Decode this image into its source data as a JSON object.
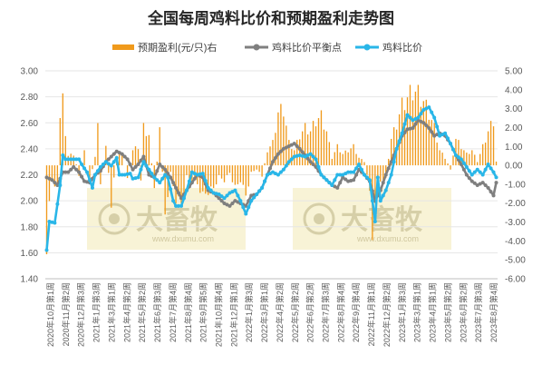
{
  "chart_data": {
    "type": "bar+line",
    "title": "全国每周鸡料比价和预期盈利走势图",
    "legend": [
      {
        "label": "预期盈利(元/只)右",
        "color": "#f09a1c",
        "kind": "bar"
      },
      {
        "label": "鸡料比价平衡点",
        "color": "#7f7f7f",
        "kind": "line"
      },
      {
        "label": "鸡料比价",
        "color": "#29b6e8",
        "kind": "line"
      }
    ],
    "left_axis": {
      "min": 1.4,
      "max": 3.0,
      "step": 0.2,
      "ticks": [
        "1.40",
        "1.60",
        "1.80",
        "2.00",
        "2.20",
        "2.40",
        "2.60",
        "2.80",
        "3.00"
      ]
    },
    "right_axis": {
      "min": -6,
      "max": 5,
      "step": 1,
      "ticks": [
        "-6.00",
        "-5.00",
        "-4.00",
        "-3.00",
        "-2.00",
        "-1.00",
        "0.00",
        "1.00",
        "2.00",
        "3.00",
        "4.00",
        "5.00"
      ]
    },
    "x_tick_labels": [
      "2020年10月第1周",
      "2020年11月第2周",
      "2020年12月第3周",
      "2021年1月第3周",
      "2021年3月第1周",
      "2021年4月第2周",
      "2021年5月第2周",
      "2021年6月第3周",
      "2021年7月第4周",
      "2021年8月第4周",
      "2021年9月第5周",
      "2021年10月第4周",
      "2021年12月第1周",
      "2022年1月第3周",
      "2022年3月第1周",
      "2022年4月第2周",
      "2022年5月第2周",
      "2022年6月第2周",
      "2022年7月第3周",
      "2022年8月第4周",
      "2022年9月第4周",
      "2022年11月第1周",
      "2022年12月第2周",
      "2023年1月第3周",
      "2023年3月第1周",
      "2023年4月第1周",
      "2023年5月第2周",
      "2023年6月第2周",
      "2023年7月第3周",
      "2023年8月第4周"
    ],
    "keypoints_ratio": [
      [
        0,
        1.62
      ],
      [
        1,
        1.84
      ],
      [
        3,
        1.83
      ],
      [
        5,
        2.12
      ],
      [
        6,
        2.35
      ],
      [
        7,
        2.32
      ],
      [
        10,
        2.32
      ],
      [
        12,
        2.32
      ],
      [
        13,
        2.28
      ],
      [
        15,
        2.22
      ],
      [
        17,
        2.1
      ],
      [
        18,
        2.2
      ],
      [
        20,
        2.26
      ],
      [
        22,
        2.3
      ],
      [
        24,
        2.27
      ],
      [
        26,
        2.33
      ],
      [
        27,
        2.2
      ],
      [
        29,
        2.2
      ],
      [
        31,
        2.21
      ],
      [
        32,
        2.17
      ],
      [
        34,
        2.18
      ],
      [
        36,
        2.3
      ],
      [
        38,
        2.24
      ],
      [
        40,
        2.18
      ],
      [
        42,
        2.14
      ],
      [
        44,
        2.2
      ],
      [
        45,
        2.18
      ],
      [
        47,
        2.0
      ],
      [
        48,
        1.96
      ],
      [
        50,
        1.96
      ],
      [
        52,
        2.08
      ],
      [
        54,
        2.22
      ],
      [
        56,
        2.2
      ],
      [
        58,
        2.21
      ],
      [
        60,
        2.1
      ],
      [
        62,
        2.06
      ],
      [
        64,
        2.05
      ],
      [
        66,
        2.02
      ],
      [
        68,
        2.06
      ],
      [
        70,
        2.08
      ],
      [
        72,
        2.0
      ],
      [
        74,
        1.9
      ],
      [
        76,
        2.0
      ],
      [
        78,
        2.05
      ],
      [
        80,
        2.1
      ],
      [
        82,
        2.2
      ],
      [
        84,
        2.22
      ],
      [
        86,
        2.2
      ],
      [
        88,
        2.24
      ],
      [
        90,
        2.3
      ],
      [
        92,
        2.34
      ],
      [
        94,
        2.35
      ],
      [
        96,
        2.34
      ],
      [
        98,
        2.36
      ],
      [
        100,
        2.32
      ],
      [
        102,
        2.2
      ],
      [
        104,
        2.16
      ],
      [
        106,
        2.12
      ],
      [
        108,
        2.2
      ],
      [
        110,
        2.2
      ],
      [
        112,
        2.22
      ],
      [
        114,
        2.22
      ],
      [
        116,
        2.28
      ],
      [
        118,
        2.2
      ],
      [
        120,
        2.16
      ],
      [
        122,
        1.84
      ],
      [
        123,
        2.18
      ],
      [
        124,
        2.0
      ],
      [
        126,
        2.08
      ],
      [
        128,
        2.2
      ],
      [
        130,
        2.4
      ],
      [
        132,
        2.52
      ],
      [
        134,
        2.66
      ],
      [
        136,
        2.62
      ],
      [
        138,
        2.64
      ],
      [
        140,
        2.7
      ],
      [
        142,
        2.72
      ],
      [
        144,
        2.64
      ],
      [
        146,
        2.5
      ],
      [
        148,
        2.52
      ],
      [
        150,
        2.44
      ],
      [
        152,
        2.35
      ],
      [
        154,
        2.32
      ],
      [
        156,
        2.26
      ],
      [
        158,
        2.2
      ],
      [
        160,
        2.24
      ],
      [
        162,
        2.2
      ],
      [
        164,
        2.28
      ],
      [
        166,
        2.22
      ],
      [
        167,
        2.18
      ]
    ],
    "keypoints_breakeven": [
      [
        0,
        2.18
      ],
      [
        2,
        2.16
      ],
      [
        4,
        2.12
      ],
      [
        6,
        2.22
      ],
      [
        8,
        2.22
      ],
      [
        10,
        2.26
      ],
      [
        12,
        2.22
      ],
      [
        14,
        2.15
      ],
      [
        16,
        2.14
      ],
      [
        18,
        2.2
      ],
      [
        20,
        2.23
      ],
      [
        22,
        2.3
      ],
      [
        24,
        2.34
      ],
      [
        26,
        2.38
      ],
      [
        28,
        2.36
      ],
      [
        30,
        2.32
      ],
      [
        32,
        2.24
      ],
      [
        34,
        2.28
      ],
      [
        36,
        2.34
      ],
      [
        38,
        2.2
      ],
      [
        40,
        2.18
      ],
      [
        42,
        2.28
      ],
      [
        44,
        2.24
      ],
      [
        46,
        2.18
      ],
      [
        48,
        2.1
      ],
      [
        50,
        2.02
      ],
      [
        52,
        2.08
      ],
      [
        54,
        2.14
      ],
      [
        56,
        2.2
      ],
      [
        58,
        2.18
      ],
      [
        60,
        2.08
      ],
      [
        62,
        2.06
      ],
      [
        64,
        2.02
      ],
      [
        66,
        1.98
      ],
      [
        68,
        1.96
      ],
      [
        70,
        2.0
      ],
      [
        72,
        1.98
      ],
      [
        74,
        1.96
      ],
      [
        76,
        2.04
      ],
      [
        78,
        2.05
      ],
      [
        80,
        2.1
      ],
      [
        82,
        2.2
      ],
      [
        84,
        2.3
      ],
      [
        86,
        2.36
      ],
      [
        88,
        2.4
      ],
      [
        90,
        2.42
      ],
      [
        92,
        2.44
      ],
      [
        94,
        2.4
      ],
      [
        96,
        2.35
      ],
      [
        98,
        2.3
      ],
      [
        100,
        2.26
      ],
      [
        102,
        2.2
      ],
      [
        104,
        2.16
      ],
      [
        106,
        2.12
      ],
      [
        108,
        2.1
      ],
      [
        110,
        2.18
      ],
      [
        112,
        2.15
      ],
      [
        114,
        2.16
      ],
      [
        116,
        2.24
      ],
      [
        118,
        2.2
      ],
      [
        120,
        2.15
      ],
      [
        122,
        2.0
      ],
      [
        124,
        2.08
      ],
      [
        126,
        2.2
      ],
      [
        128,
        2.3
      ],
      [
        130,
        2.4
      ],
      [
        132,
        2.5
      ],
      [
        134,
        2.55
      ],
      [
        136,
        2.56
      ],
      [
        138,
        2.62
      ],
      [
        140,
        2.6
      ],
      [
        142,
        2.56
      ],
      [
        144,
        2.5
      ],
      [
        146,
        2.52
      ],
      [
        148,
        2.5
      ],
      [
        150,
        2.44
      ],
      [
        152,
        2.35
      ],
      [
        154,
        2.28
      ],
      [
        156,
        2.2
      ],
      [
        158,
        2.15
      ],
      [
        160,
        2.12
      ],
      [
        162,
        2.14
      ],
      [
        164,
        2.1
      ],
      [
        166,
        2.04
      ],
      [
        167,
        2.14
      ]
    ],
    "keypoints_profit": [
      [
        0,
        -4.2
      ],
      [
        1,
        -2.2
      ],
      [
        2,
        -0.8
      ],
      [
        4,
        -1.2
      ],
      [
        5,
        2.5
      ],
      [
        6,
        3.4
      ],
      [
        7,
        1.8
      ],
      [
        8,
        0.5
      ],
      [
        10,
        0.6
      ],
      [
        12,
        -0.5
      ],
      [
        14,
        0.8
      ],
      [
        16,
        -0.8
      ],
      [
        18,
        0.4
      ],
      [
        19,
        2.6
      ],
      [
        20,
        -1.0
      ],
      [
        22,
        1.2
      ],
      [
        24,
        -2.0
      ],
      [
        26,
        0.5
      ],
      [
        28,
        0.6
      ],
      [
        30,
        -0.6
      ],
      [
        32,
        0.8
      ],
      [
        34,
        1.0
      ],
      [
        35,
        -0.8
      ],
      [
        36,
        2.0
      ],
      [
        38,
        1.6
      ],
      [
        40,
        -1.4
      ],
      [
        42,
        1.8
      ],
      [
        44,
        -2.6
      ],
      [
        46,
        -0.4
      ],
      [
        48,
        -1.8
      ],
      [
        50,
        -2.0
      ],
      [
        52,
        -0.6
      ],
      [
        54,
        -0.8
      ],
      [
        56,
        -1.0
      ],
      [
        58,
        -1.6
      ],
      [
        60,
        -1.4
      ],
      [
        62,
        -1.2
      ],
      [
        64,
        -0.6
      ],
      [
        66,
        -0.8
      ],
      [
        68,
        -0.4
      ],
      [
        70,
        -1.2
      ],
      [
        72,
        -0.8
      ],
      [
        74,
        -1.6
      ],
      [
        76,
        -0.4
      ],
      [
        78,
        -0.2
      ],
      [
        80,
        -0.6
      ],
      [
        82,
        0.8
      ],
      [
        84,
        1.2
      ],
      [
        86,
        2.8
      ],
      [
        88,
        3.0
      ],
      [
        90,
        1.2
      ],
      [
        92,
        0.8
      ],
      [
        94,
        1.6
      ],
      [
        96,
        2.0
      ],
      [
        98,
        1.8
      ],
      [
        100,
        2.4
      ],
      [
        102,
        2.6
      ],
      [
        104,
        1.8
      ],
      [
        106,
        0.4
      ],
      [
        108,
        1.0
      ],
      [
        110,
        0.6
      ],
      [
        112,
        0.8
      ],
      [
        114,
        1.0
      ],
      [
        116,
        0.4
      ],
      [
        118,
        0.2
      ],
      [
        120,
        -1.2
      ],
      [
        121,
        -4.6
      ],
      [
        122,
        -2.0
      ],
      [
        124,
        -1.0
      ],
      [
        126,
        -0.6
      ],
      [
        128,
        1.4
      ],
      [
        130,
        2.2
      ],
      [
        132,
        3.2
      ],
      [
        134,
        3.6
      ],
      [
        136,
        4.0
      ],
      [
        138,
        3.8
      ],
      [
        140,
        3.4
      ],
      [
        142,
        2.8
      ],
      [
        144,
        2.0
      ],
      [
        146,
        0.8
      ],
      [
        148,
        0.4
      ],
      [
        150,
        -0.2
      ],
      [
        152,
        1.4
      ],
      [
        154,
        1.0
      ],
      [
        156,
        0.6
      ],
      [
        158,
        0.8
      ],
      [
        160,
        0.2
      ],
      [
        162,
        1.0
      ],
      [
        164,
        1.8
      ],
      [
        166,
        2.4
      ],
      [
        167,
        0.2
      ]
    ]
  },
  "watermark": {
    "brand": "大畜牧",
    "url": "www.dxumu.com"
  }
}
